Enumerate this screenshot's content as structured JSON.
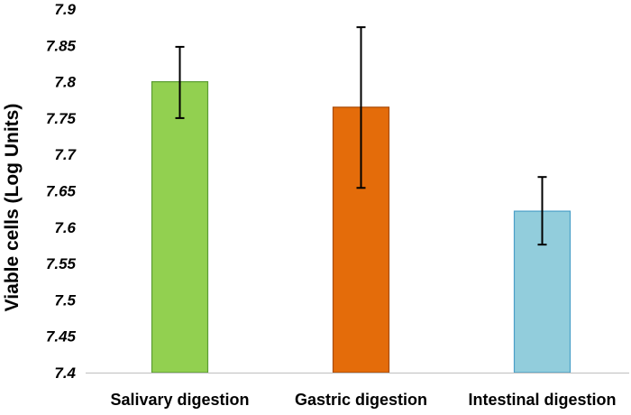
{
  "chart_data": {
    "type": "bar",
    "title": "",
    "xlabel": "",
    "ylabel": "Viable cells (Log Units)",
    "ylim": [
      7.4,
      7.9
    ],
    "yticks": [
      "7.4",
      "7.45",
      "7.5",
      "7.55",
      "7.6",
      "7.65",
      "7.7",
      "7.75",
      "7.8",
      "7.85",
      "7.9"
    ],
    "categories": [
      "Salivary digestion",
      "Gastric digestion",
      "Intestinal digestion"
    ],
    "values": [
      7.8,
      7.765,
      7.622
    ],
    "error_low": [
      7.75,
      7.654,
      7.576
    ],
    "error_high": [
      7.848,
      7.875,
      7.669
    ],
    "colors": [
      "#92d050",
      "#e46c0a",
      "#92cddc"
    ],
    "border_colors": [
      "#5b9c32",
      "#a94b06",
      "#4a9fc8"
    ],
    "grid": false,
    "legend": "none"
  }
}
